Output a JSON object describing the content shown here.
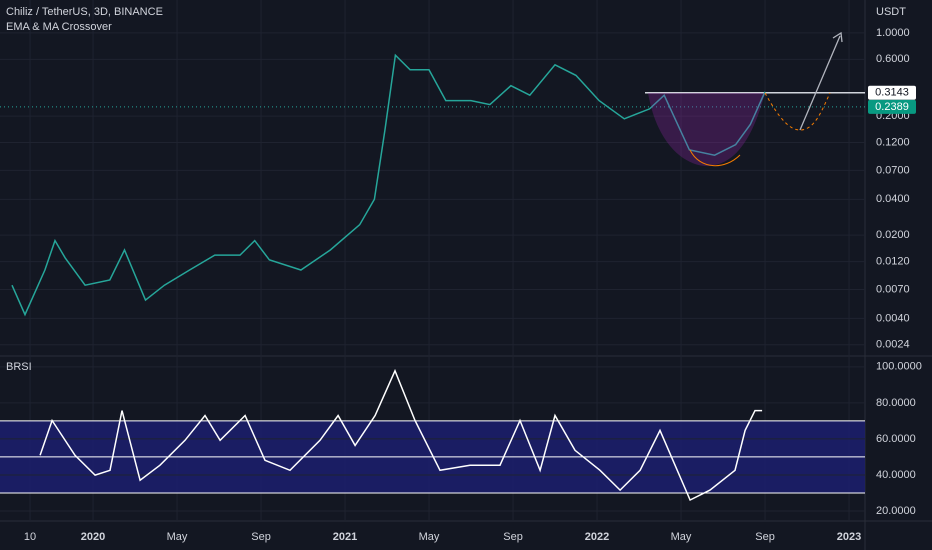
{
  "chart_data": [
    {
      "type": "line",
      "log": true,
      "title": "Chiliz / TetherUS, 3D, BINANCE",
      "subtitle": "EMA & MA Crossover",
      "y_unit": "USDT",
      "color": "#26a69a",
      "x": [
        -0.86,
        -0.24,
        0.71,
        1.19,
        1.67,
        2.62,
        3.8,
        4.5,
        5.5,
        6.4,
        7.6,
        8.8,
        10,
        10.7,
        11.4,
        12.9,
        14.3,
        15.7,
        16.4,
        16.9,
        17.4,
        18.1,
        19.0,
        19.8,
        21,
        21.9,
        22.9,
        23.8,
        25,
        26,
        27.1,
        28.3,
        29.5,
        30.2,
        31.4,
        32.6,
        33.6,
        34.3,
        35
      ],
      "values": [
        0.0076,
        0.0043,
        0.0102,
        0.018,
        0.0129,
        0.0076,
        0.0084,
        0.015,
        0.0057,
        0.0076,
        0.0102,
        0.0136,
        0.0136,
        0.018,
        0.0124,
        0.0102,
        0.015,
        0.0245,
        0.04,
        0.152,
        0.65,
        0.49,
        0.49,
        0.27,
        0.27,
        0.25,
        0.36,
        0.3,
        0.54,
        0.44,
        0.27,
        0.19,
        0.23,
        0.3,
        0.104,
        0.094,
        0.115,
        0.17,
        0.32
      ],
      "price_lines": [
        0.3143,
        0.2389
      ],
      "xlim": [
        -1.43,
        39.76
      ],
      "ylim": [
        0.00197,
        1.89
      ],
      "yticks": [
        {
          "value": 1.0,
          "label": "1.0000"
        },
        {
          "value": 0.6,
          "label": "0.6000"
        },
        {
          "value": 0.2,
          "label": "0.2000"
        },
        {
          "value": 0.12,
          "label": "0.1200"
        },
        {
          "value": 0.07,
          "label": "0.0700"
        },
        {
          "value": 0.04,
          "label": "0.0400"
        },
        {
          "value": 0.02,
          "label": "0.0200"
        },
        {
          "value": 0.012,
          "label": "0.0120"
        },
        {
          "value": 0.007,
          "label": "0.0070"
        },
        {
          "value": 0.004,
          "label": "0.0040"
        },
        {
          "value": 0.0024,
          "label": "0.0024"
        }
      ]
    },
    {
      "type": "line",
      "title": "BRSI",
      "color": "#ffffff",
      "x": [
        0.48,
        1.05,
        2.14,
        3.1,
        3.81,
        4.38,
        5.24,
        6.19,
        7.38,
        8.33,
        9.05,
        10.24,
        11.19,
        12.38,
        13.81,
        14.67,
        15.48,
        16.43,
        17.38,
        18.33,
        19.52,
        20.95,
        22.38,
        23.33,
        24.29,
        25,
        25.95,
        27.14,
        28.1,
        29.05,
        30,
        31.43,
        32.38,
        33.57,
        34.05,
        34.52,
        34.86
      ],
      "values": [
        50.9,
        70.2,
        50.9,
        39.9,
        42.6,
        75.7,
        37.1,
        45.4,
        59.2,
        73,
        59.2,
        73,
        48.1,
        42.6,
        59.2,
        73,
        56.4,
        73,
        97.8,
        70.2,
        42.6,
        45.4,
        45.4,
        70.2,
        42.6,
        73,
        53.7,
        42.6,
        31.6,
        42.6,
        64.7,
        26.1,
        31.6,
        42.6,
        64.7,
        75.7,
        75.7
      ],
      "levels": [
        30,
        50,
        70
      ],
      "xlim": [
        -1.43,
        39.76
      ],
      "ylim": [
        15,
        106
      ],
      "yticks": [
        {
          "value": 100,
          "label": "100.0000"
        },
        {
          "value": 80,
          "label": "80.0000"
        },
        {
          "value": 60,
          "label": "60.0000"
        },
        {
          "value": 40,
          "label": "40.0000"
        },
        {
          "value": 20,
          "label": "20.0000"
        }
      ],
      "xticks": [
        {
          "value": 0,
          "label": "10"
        },
        {
          "value": 3,
          "label": "2020"
        },
        {
          "value": 7,
          "label": "May"
        },
        {
          "value": 11,
          "label": "Sep"
        },
        {
          "value": 15,
          "label": "2021"
        },
        {
          "value": 19,
          "label": "May"
        },
        {
          "value": 23,
          "label": "Sep"
        },
        {
          "value": 27,
          "label": "2022"
        },
        {
          "value": 31,
          "label": "May"
        },
        {
          "value": 35,
          "label": "Sep"
        },
        {
          "value": 39,
          "label": "2023"
        }
      ]
    }
  ]
}
